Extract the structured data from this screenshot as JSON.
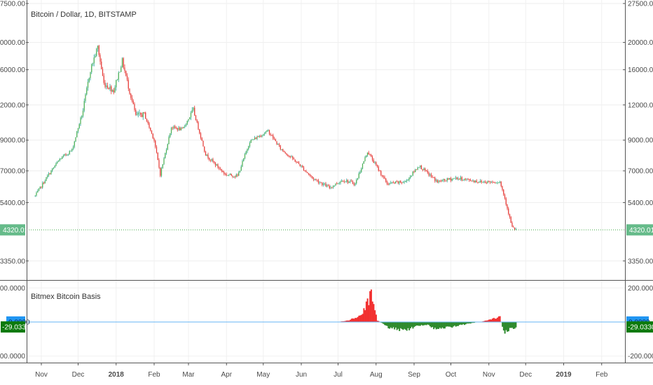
{
  "main": {
    "title": "Bitcoin / Dollar, 1D, BITSTAMP",
    "y_ticks": [
      "27500.00",
      "20000.00",
      "16000.00",
      "12000.00",
      "9000.00",
      "7000.00",
      "5400.00",
      "3350.00"
    ],
    "y_tick_values": [
      27500,
      20000,
      16000,
      12000,
      9000,
      7000,
      5400,
      3350
    ],
    "scale": "log",
    "ylim": [
      2900,
      27500
    ],
    "last_price": 4320.01,
    "last_price_label": "4320.01",
    "colors": {
      "up": "#26a69a",
      "up_fill": "#4caf50",
      "down": "#e53935",
      "last_line": "#4caf50",
      "badge": "#66bb8a"
    }
  },
  "indicator": {
    "title": "Bitmex Bitcoin Basis",
    "y_ticks": [
      "200.0000",
      "-200.0000"
    ],
    "y_tick_values": [
      200,
      -200
    ],
    "ylim": [
      -230,
      230
    ],
    "zero_label": "0.0000",
    "current_label": "-29.0330",
    "current_value": -29.033,
    "colors": {
      "positive": "#f23030",
      "negative": "#2e8b2e",
      "zero_line": "#64b5f6",
      "zero_badge": "#2196f3",
      "current_badge": "#0d7a0d"
    }
  },
  "x_axis": {
    "labels": [
      {
        "text": "Nov",
        "bold": false
      },
      {
        "text": "Dec",
        "bold": false
      },
      {
        "text": "2018",
        "bold": true
      },
      {
        "text": "Feb",
        "bold": false
      },
      {
        "text": "Mar",
        "bold": false
      },
      {
        "text": "Apr",
        "bold": false
      },
      {
        "text": "May",
        "bold": false
      },
      {
        "text": "Jun",
        "bold": false
      },
      {
        "text": "Jul",
        "bold": false
      },
      {
        "text": "Aug",
        "bold": false
      },
      {
        "text": "Sep",
        "bold": false
      },
      {
        "text": "Oct",
        "bold": false
      },
      {
        "text": "Nov",
        "bold": false
      },
      {
        "text": "Dec",
        "bold": false
      },
      {
        "text": "2019",
        "bold": true
      },
      {
        "text": "Feb",
        "bold": false
      }
    ]
  },
  "chart_data": [
    {
      "type": "line",
      "title": "Bitcoin / Dollar, 1D, BITSTAMP",
      "scale": "log",
      "x": [
        "2017-10-27",
        "2017-11-06",
        "2017-11-16",
        "2017-11-26",
        "2017-12-05",
        "2017-12-11",
        "2017-12-17",
        "2017-12-22",
        "2017-12-30",
        "2018-01-06",
        "2018-01-12",
        "2018-01-17",
        "2018-01-24",
        "2018-02-01",
        "2018-02-06",
        "2018-02-15",
        "2018-02-24",
        "2018-03-05",
        "2018-03-15",
        "2018-03-31",
        "2018-04-10",
        "2018-04-20",
        "2018-05-05",
        "2018-05-15",
        "2018-05-30",
        "2018-06-10",
        "2018-06-24",
        "2018-07-05",
        "2018-07-15",
        "2018-07-25",
        "2018-08-10",
        "2018-08-25",
        "2018-09-05",
        "2018-09-20",
        "2018-10-05",
        "2018-10-25",
        "2018-11-10",
        "2018-11-14",
        "2018-11-20",
        "2018-11-23"
      ],
      "values": [
        5700,
        6700,
        7700,
        8300,
        11500,
        16000,
        19300,
        14300,
        13500,
        17200,
        13400,
        11000,
        11100,
        9000,
        6800,
        10000,
        9800,
        11500,
        8000,
        6800,
        6700,
        8900,
        9700,
        8400,
        7400,
        6600,
        6100,
        6500,
        6300,
        8200,
        6300,
        6400,
        7300,
        6400,
        6600,
        6400,
        6400,
        5600,
        4400,
        4320
      ],
      "ylim": [
        2900,
        27500
      ]
    },
    {
      "type": "area",
      "title": "Bitmex Bitcoin Basis",
      "x": [
        "2018-07-01",
        "2018-07-10",
        "2018-07-20",
        "2018-07-28",
        "2018-08-02",
        "2018-08-12",
        "2018-08-25",
        "2018-09-05",
        "2018-09-12",
        "2018-09-20",
        "2018-10-01",
        "2018-10-15",
        "2018-10-28",
        "2018-11-10",
        "2018-11-13",
        "2018-11-17",
        "2018-11-23"
      ],
      "values": [
        0,
        10,
        40,
        160,
        10,
        -35,
        -50,
        -20,
        -15,
        -45,
        -30,
        -10,
        5,
        30,
        -60,
        -45,
        -29.033
      ],
      "ylim": [
        -230,
        230
      ]
    }
  ]
}
